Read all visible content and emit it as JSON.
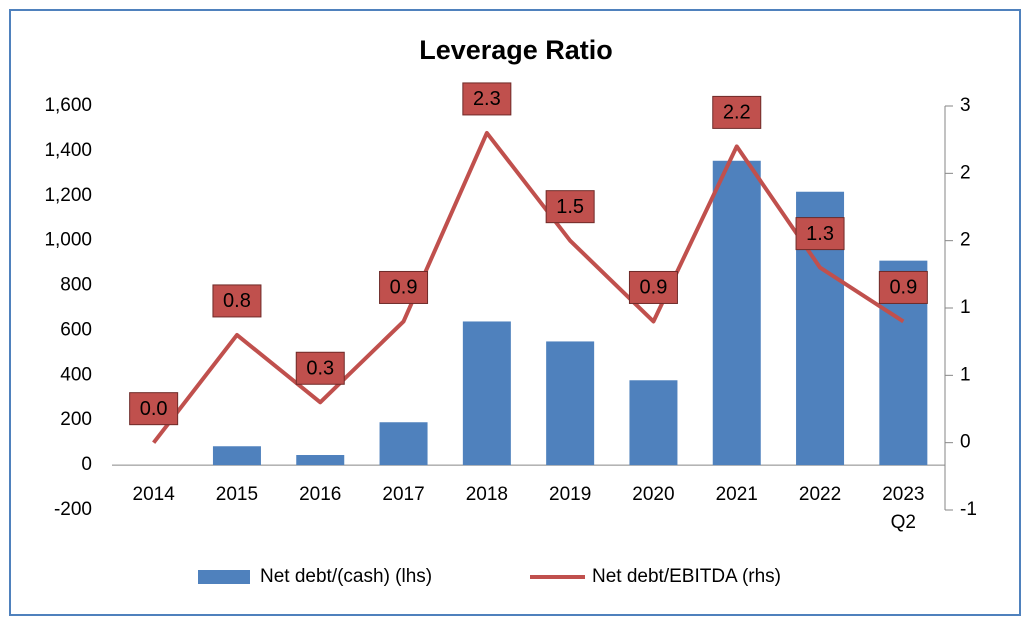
{
  "chart_data": {
    "type": "bar",
    "title": "Leverage Ratio",
    "categories": [
      "2014",
      "2015",
      "2016",
      "2017",
      "2018",
      "2019",
      "2020",
      "2021",
      "2022",
      "2023\nQ2"
    ],
    "series": [
      {
        "name": "Net debt/(cash) (lhs)",
        "type": "bar",
        "color": "#4f81bd",
        "values": [
          0,
          84,
          45,
          191,
          640,
          551,
          378,
          1356,
          1218,
          911
        ]
      },
      {
        "name": "Net debt/EBITDA (rhs)",
        "type": "line",
        "axis": "y2",
        "color": "#c0504d",
        "values": [
          0,
          0.8,
          0.3,
          0.9,
          2.3,
          1.5,
          0.9,
          2.2,
          1.3,
          0.9
        ],
        "value_labels": [
          "0.0",
          "0.8",
          "0.3",
          "0.9",
          "2.3",
          "1.5",
          "0.9",
          "2.2",
          "1.3",
          "0.9"
        ]
      }
    ],
    "ylim": [
      -200,
      1600
    ],
    "yticks": [
      -200,
      0,
      200,
      400,
      600,
      800,
      {
        "value": 1000,
        "label": "1,000"
      },
      {
        "value": 1200,
        "label": "1,200"
      },
      {
        "value": 1400,
        "label": "1,400"
      },
      {
        "value": 1600,
        "label": "1,600"
      }
    ],
    "y2lim": [
      -0.5,
      2.5
    ],
    "y2ticks": [
      {
        "value": -0.5,
        "label": "-1"
      },
      0,
      {
        "value": 0.5,
        "label": "1"
      },
      1,
      {
        "value": 1.5,
        "label": "2"
      },
      2,
      {
        "value": 2.5,
        "label": "3"
      }
    ],
    "legend": "bottom"
  }
}
